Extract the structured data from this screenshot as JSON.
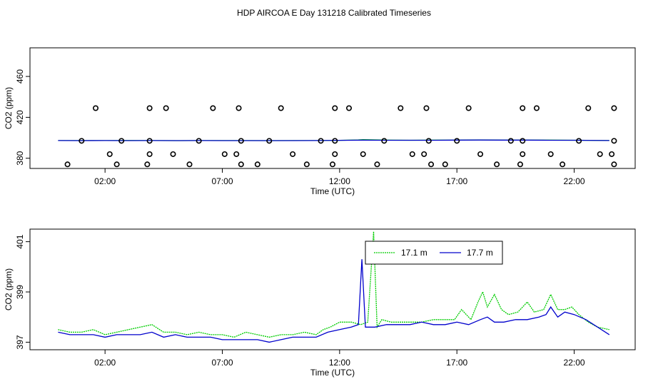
{
  "title": "HDP AIRCOA E  Day 131218  Calibrated Timeseries",
  "colors": {
    "series_1": "#00cc00",
    "series_2": "#0000cc",
    "points": "#000000"
  },
  "chart_data": [
    {
      "type": "scatter",
      "xlabel": "Time (UTC)",
      "ylabel": "CO2 (ppm)",
      "x_unit": "hours UTC",
      "x_ticks": [
        2,
        7,
        12,
        17,
        22
      ],
      "x_tick_labels": [
        "02:00",
        "07:00",
        "12:00",
        "17:00",
        "22:00"
      ],
      "xlim": [
        -1.2,
        24.6
      ],
      "ylim": [
        370,
        488
      ],
      "y_ticks": [
        380,
        420,
        460
      ],
      "y_tick_labels": [
        "380",
        "420",
        "460"
      ],
      "grid": false,
      "points": {
        "y384": [
          2.2,
          3.9,
          4.9,
          7.1,
          7.6,
          10.0,
          11.8,
          13.0,
          15.1,
          15.6,
          18.0,
          19.8,
          21.0,
          23.1,
          23.6
        ],
        "y429": [
          1.6,
          3.9,
          4.6,
          6.6,
          7.7,
          9.5,
          11.8,
          12.4,
          14.6,
          15.7,
          17.5,
          19.8,
          20.4,
          22.6,
          23.7
        ],
        "y397": [
          1.0,
          2.7,
          3.9,
          6.0,
          7.8,
          9.0,
          11.2,
          11.8,
          13.9,
          15.8,
          17.0,
          19.3,
          19.8,
          22.2,
          23.7
        ],
        "y374": [
          0.4,
          2.5,
          3.8,
          5.6,
          7.8,
          8.5,
          10.6,
          11.7,
          13.6,
          15.9,
          16.5,
          18.7,
          19.7,
          21.5,
          23.7
        ]
      },
      "series": [
        {
          "name": "17.1 m",
          "color": "#00cc00",
          "x": [
            0,
            1,
            2,
            3,
            4,
            5,
            6,
            7,
            8,
            9,
            10,
            11,
            12,
            12.8,
            13,
            14,
            15,
            16,
            17,
            18,
            19,
            20,
            21,
            22,
            23.5
          ],
          "y": [
            397.3,
            397.3,
            397.3,
            397.4,
            397.3,
            397.2,
            397.3,
            397.3,
            397.3,
            397.2,
            397.3,
            397.3,
            397.5,
            397.9,
            398.2,
            397.7,
            397.6,
            397.7,
            397.8,
            397.9,
            397.8,
            397.8,
            397.7,
            397.6,
            397.4
          ]
        },
        {
          "name": "17.7 m",
          "color": "#0000cc",
          "x": [
            0,
            1,
            2,
            3,
            4,
            5,
            6,
            7,
            8,
            9,
            10,
            11,
            12,
            13,
            14,
            15,
            16,
            17,
            18,
            19,
            20,
            21,
            22,
            23.5
          ],
          "y": [
            397.3,
            397.2,
            397.3,
            397.2,
            397.3,
            397.2,
            397.3,
            397.2,
            397.2,
            397.2,
            397.2,
            397.3,
            397.5,
            397.7,
            397.6,
            397.6,
            397.6,
            397.7,
            397.8,
            397.7,
            397.7,
            397.6,
            397.6,
            397.3
          ]
        }
      ]
    },
    {
      "type": "line",
      "xlabel": "Time (UTC)",
      "ylabel": "CO2 (ppm)",
      "x_unit": "hours UTC",
      "x_ticks": [
        2,
        7,
        12,
        17,
        22
      ],
      "x_tick_labels": [
        "02:00",
        "07:00",
        "12:00",
        "17:00",
        "22:00"
      ],
      "xlim": [
        -1.2,
        24.6
      ],
      "ylim": [
        396.7,
        401.5
      ],
      "y_ticks": [
        397,
        399,
        401
      ],
      "y_tick_labels": [
        "397",
        "399",
        "401"
      ],
      "grid": false,
      "legend": "top-center",
      "series": [
        {
          "name": "17.1 m",
          "color": "#00cc00",
          "style": "dotted",
          "x": [
            0,
            0.5,
            1,
            1.5,
            2,
            2.5,
            3,
            3.5,
            4,
            4.5,
            5,
            5.5,
            6,
            6.5,
            7,
            7.5,
            8,
            8.5,
            9,
            9.5,
            10,
            10.5,
            11,
            11.3,
            11.6,
            12,
            12.5,
            12.9,
            13.2,
            13.45,
            13.6,
            13.8,
            14.2,
            14.6,
            15,
            15.5,
            16,
            16.5,
            16.9,
            17.2,
            17.6,
            17.9,
            18.1,
            18.3,
            18.6,
            18.9,
            19.2,
            19.6,
            20,
            20.3,
            20.7,
            21.0,
            21.3,
            21.6,
            21.9,
            22.2,
            22.6,
            23,
            23.5
          ],
          "y": [
            397.5,
            397.4,
            397.4,
            397.5,
            397.3,
            397.4,
            397.5,
            397.6,
            397.7,
            397.4,
            397.4,
            397.3,
            397.4,
            397.3,
            397.3,
            397.2,
            397.4,
            397.3,
            397.2,
            397.3,
            397.3,
            397.4,
            397.3,
            397.5,
            397.6,
            397.8,
            397.8,
            397.7,
            397.8,
            401.4,
            397.6,
            397.9,
            397.8,
            397.8,
            397.8,
            397.8,
            397.9,
            397.9,
            397.9,
            398.3,
            397.9,
            398.6,
            399.0,
            398.4,
            398.9,
            398.3,
            398.1,
            398.2,
            398.6,
            398.2,
            398.3,
            398.9,
            398.3,
            398.3,
            398.4,
            398.1,
            397.8,
            397.6,
            397.5
          ]
        },
        {
          "name": "17.7 m",
          "color": "#0000cc",
          "style": "solid",
          "x": [
            0,
            0.5,
            1,
            1.5,
            2,
            2.5,
            3,
            3.5,
            4,
            4.5,
            5,
            5.5,
            6,
            6.5,
            7,
            7.5,
            8,
            8.5,
            9,
            9.5,
            10,
            10.5,
            11,
            11.5,
            12,
            12.5,
            12.8,
            12.95,
            13.1,
            13.5,
            14,
            14.5,
            15,
            15.5,
            16,
            16.5,
            17,
            17.5,
            18,
            18.3,
            18.6,
            19,
            19.5,
            20,
            20.5,
            20.8,
            21.0,
            21.3,
            21.6,
            22,
            22.5,
            23,
            23.5
          ],
          "y": [
            397.4,
            397.3,
            397.3,
            397.3,
            397.2,
            397.3,
            397.3,
            397.3,
            397.4,
            397.2,
            397.3,
            397.2,
            397.2,
            397.2,
            397.1,
            397.1,
            397.1,
            397.1,
            397.0,
            397.1,
            397.2,
            397.2,
            397.2,
            397.4,
            397.5,
            397.6,
            397.7,
            400.3,
            397.6,
            397.6,
            397.7,
            397.7,
            397.7,
            397.8,
            397.7,
            397.7,
            397.8,
            397.7,
            397.9,
            398.0,
            397.8,
            397.8,
            397.9,
            397.9,
            398.0,
            398.1,
            398.4,
            398.0,
            398.2,
            398.1,
            397.9,
            397.6,
            397.3
          ]
        }
      ]
    }
  ]
}
